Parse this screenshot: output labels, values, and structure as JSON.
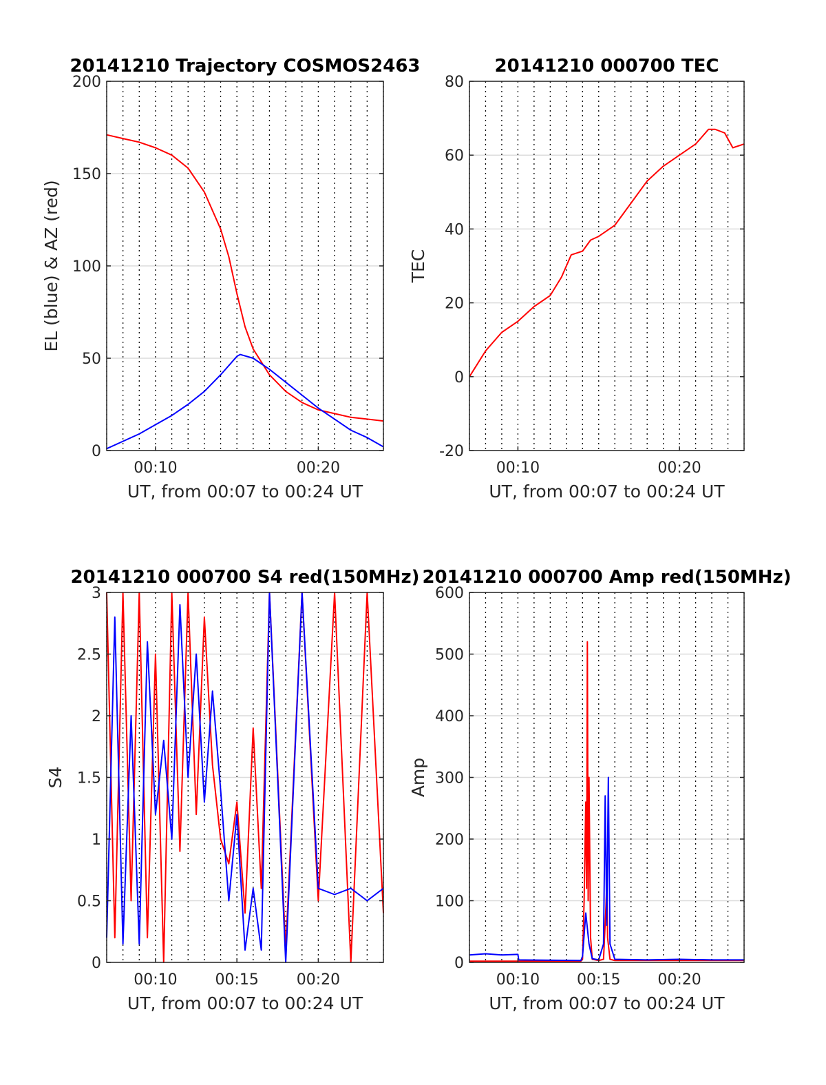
{
  "chart_data": [
    {
      "type": "line",
      "title": "20141210 Trajectory COSMOS2463",
      "xlabel": "UT, from 00:07 to 00:24 UT",
      "ylabel": "EL (blue) & AZ (red)",
      "x_unit": "minutes UT",
      "xlim": [
        7,
        24
      ],
      "ylim": [
        0,
        200
      ],
      "xticks": [
        {
          "value": 10,
          "label": "00:10"
        },
        {
          "value": 20,
          "label": "00:20"
        }
      ],
      "yticks": [
        0,
        50,
        100,
        150,
        200
      ],
      "series": [
        {
          "color": "#ff0000",
          "x": [
            7,
            8,
            9,
            10,
            11,
            12,
            13,
            14,
            14.5,
            15,
            15.5,
            16,
            17,
            18,
            19,
            20,
            21,
            22,
            23,
            24
          ],
          "y": [
            171,
            169,
            167,
            164,
            160,
            153,
            140,
            120,
            105,
            85,
            67,
            55,
            41,
            32,
            26,
            22,
            20,
            18,
            17,
            16
          ]
        },
        {
          "color": "#0000ff",
          "x": [
            7,
            8,
            9,
            10,
            11,
            12,
            13,
            14,
            15,
            15.2,
            16,
            17,
            18,
            19,
            20,
            21,
            22,
            23,
            24
          ],
          "y": [
            1,
            5,
            9,
            14,
            19,
            25,
            32,
            41,
            51,
            52,
            50,
            44,
            37,
            30,
            23,
            17,
            11,
            7,
            2
          ]
        }
      ],
      "grid": true
    },
    {
      "type": "line",
      "title": "20141210 000700 TEC",
      "xlabel": "UT, from 00:07 to 00:24 UT",
      "ylabel": "TEC",
      "x_unit": "minutes UT",
      "xlim": [
        7,
        24
      ],
      "ylim": [
        -20,
        80
      ],
      "xticks": [
        {
          "value": 10,
          "label": "00:10"
        },
        {
          "value": 20,
          "label": "00:20"
        }
      ],
      "yticks": [
        -20,
        0,
        20,
        40,
        60,
        80
      ],
      "series": [
        {
          "color": "#ff0000",
          "x": [
            7,
            8,
            9,
            10,
            11,
            12,
            12.7,
            13.3,
            14,
            14.5,
            15,
            16,
            17,
            18,
            19,
            20,
            21,
            21.8,
            22.2,
            22.8,
            23.3,
            24
          ],
          "y": [
            0,
            7,
            12,
            15,
            19,
            22,
            27,
            33,
            34,
            37,
            38,
            41,
            47,
            53,
            57,
            60,
            63,
            67,
            67,
            66,
            62,
            63
          ]
        }
      ],
      "grid": true
    },
    {
      "type": "line",
      "title": "20141210 000700 S4 red(150MHz)",
      "xlabel": "UT, from 00:07 to 00:24 UT",
      "ylabel": "S4",
      "x_unit": "minutes UT",
      "xlim": [
        7,
        24
      ],
      "ylim": [
        0,
        3
      ],
      "xticks": [
        {
          "value": 10,
          "label": "00:10"
        },
        {
          "value": 15,
          "label": "00:15"
        },
        {
          "value": 20,
          "label": "00:20"
        }
      ],
      "yticks": [
        0,
        0.5,
        1,
        1.5,
        2,
        2.5,
        3
      ],
      "series": [
        {
          "color": "#ff0000",
          "x": [
            7,
            7.5,
            8,
            8.5,
            9,
            9.5,
            10,
            10.5,
            11,
            11.5,
            12,
            12.5,
            13,
            13.5,
            14,
            14.5,
            15,
            15.5,
            16,
            16.5,
            17,
            18,
            19,
            20,
            21,
            22,
            23,
            24
          ],
          "y": [
            3,
            0.2,
            3,
            0.5,
            3,
            0.2,
            2.5,
            0,
            3,
            0.9,
            3,
            1.2,
            2.8,
            1.6,
            1,
            0.8,
            1.3,
            0.4,
            1.9,
            0.6,
            3,
            0.1,
            3,
            0.5,
            3,
            0,
            3,
            0.4
          ]
        },
        {
          "color": "#0000ff",
          "x": [
            7,
            7.5,
            8,
            8.5,
            9,
            9.5,
            10,
            10.5,
            11,
            11.5,
            12,
            12.5,
            13,
            13.5,
            14,
            14.5,
            15,
            15.5,
            16,
            16.5,
            17,
            18,
            19,
            20,
            21,
            22,
            23,
            24
          ],
          "y": [
            0.2,
            2.8,
            0.15,
            2,
            0.15,
            2.6,
            1.2,
            1.8,
            1,
            2.9,
            1.5,
            2.5,
            1.3,
            2.2,
            1.4,
            0.5,
            1.2,
            0.1,
            0.6,
            0.1,
            3,
            0,
            3,
            0.6,
            0.55,
            0.6,
            0.5,
            0.6
          ]
        }
      ],
      "grid": true
    },
    {
      "type": "line",
      "title": "20141210 000700 Amp red(150MHz)",
      "xlabel": "UT, from 00:07 to 00:24 UT",
      "ylabel": "Amp",
      "x_unit": "minutes UT",
      "xlim": [
        7,
        24
      ],
      "ylim": [
        0,
        600
      ],
      "xticks": [
        {
          "value": 10,
          "label": "00:10"
        },
        {
          "value": 15,
          "label": "00:15"
        },
        {
          "value": 20,
          "label": "00:20"
        }
      ],
      "yticks": [
        0,
        100,
        200,
        300,
        400,
        500,
        600
      ],
      "series": [
        {
          "color": "#ff0000",
          "x": [
            7,
            13.9,
            14.0,
            14.1,
            14.2,
            14.25,
            14.3,
            14.35,
            14.4,
            14.5,
            14.6,
            15.0,
            15.3,
            15.45,
            15.5,
            15.55,
            15.7,
            16,
            24
          ],
          "y": [
            2,
            2,
            5,
            100,
            260,
            120,
            520,
            100,
            300,
            40,
            5,
            3,
            5,
            90,
            130,
            40,
            5,
            3,
            3
          ]
        },
        {
          "color": "#0000ff",
          "x": [
            7,
            8,
            9,
            10,
            10.05,
            13.9,
            14.0,
            14.2,
            14.4,
            14.6,
            15.0,
            15.3,
            15.4,
            15.5,
            15.6,
            15.7,
            16,
            18,
            20,
            22,
            24
          ],
          "y": [
            12,
            14,
            12,
            13,
            4,
            3,
            10,
            80,
            30,
            6,
            4,
            30,
            270,
            60,
            300,
            30,
            5,
            4,
            5,
            4,
            4
          ]
        }
      ],
      "grid": true
    }
  ]
}
